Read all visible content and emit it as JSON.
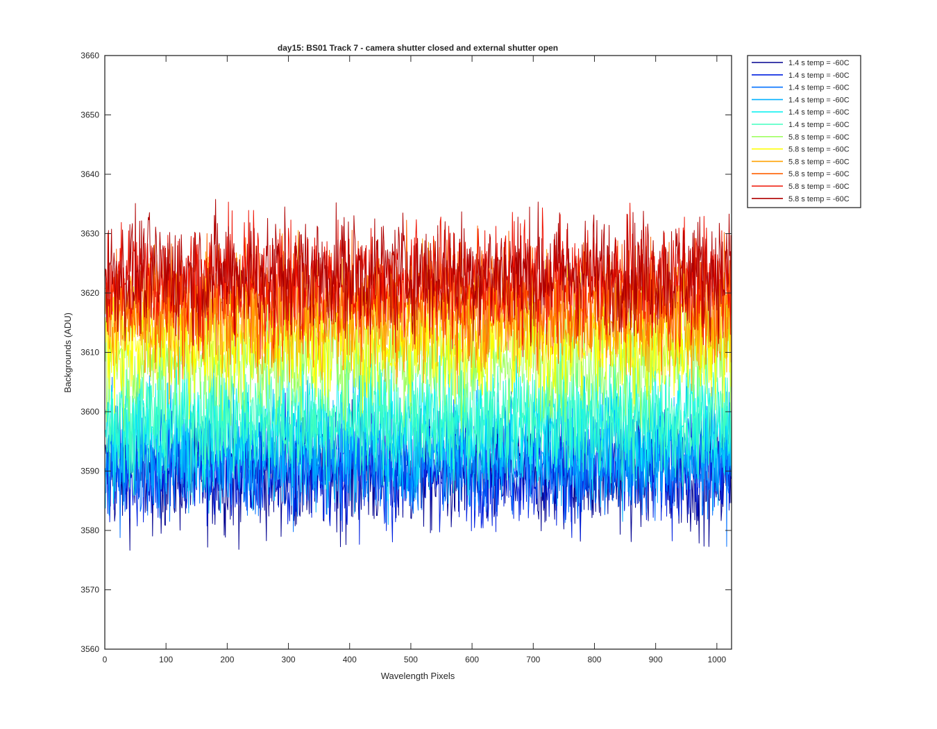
{
  "chart_data": {
    "type": "line",
    "title": "day15: BS01  Track 7 - camera shutter closed and external shutter open",
    "xlabel": "Wavelength Pixels",
    "ylabel": "Backgrounds (ADU)",
    "xlim": [
      0,
      1024
    ],
    "ylim": [
      3560,
      3660
    ],
    "xticks": [
      0,
      100,
      200,
      300,
      400,
      500,
      600,
      700,
      800,
      900,
      1000
    ],
    "yticks": [
      3560,
      3570,
      3580,
      3590,
      3600,
      3610,
      3620,
      3630,
      3640,
      3650,
      3660
    ],
    "grid": false,
    "legend_position": "outside-top-right",
    "x_range_per_series": [
      1,
      1024
    ],
    "noise_amplitude_adu": 9,
    "series": [
      {
        "name": "1.4 s temp = -60C",
        "color": "#00008f",
        "mean": 3589.5
      },
      {
        "name": "1.4 s temp = -60C",
        "color": "#0020e0",
        "mean": 3590.5
      },
      {
        "name": "1.4 s temp = -60C",
        "color": "#0070ff",
        "mean": 3592.0
      },
      {
        "name": "1.4 s temp = -60C",
        "color": "#00b0ff",
        "mean": 3594.0
      },
      {
        "name": "1.4 s temp = -60C",
        "color": "#10f0f0",
        "mean": 3598.0
      },
      {
        "name": "1.4 s temp = -60C",
        "color": "#40ffbf",
        "mean": 3599.0
      },
      {
        "name": "5.8 s temp = -60C",
        "color": "#9fff60",
        "mean": 3609.0
      },
      {
        "name": "5.8 s temp = -60C",
        "color": "#ffff00",
        "mean": 3612.0
      },
      {
        "name": "5.8 s temp = -60C",
        "color": "#ffa000",
        "mean": 3616.0
      },
      {
        "name": "5.8 s temp = -60C",
        "color": "#ff6000",
        "mean": 3619.0
      },
      {
        "name": "5.8 s temp = -60C",
        "color": "#ef1000",
        "mean": 3622.0
      },
      {
        "name": "5.8 s temp = -60C",
        "color": "#af0000",
        "mean": 3623.5
      }
    ]
  }
}
